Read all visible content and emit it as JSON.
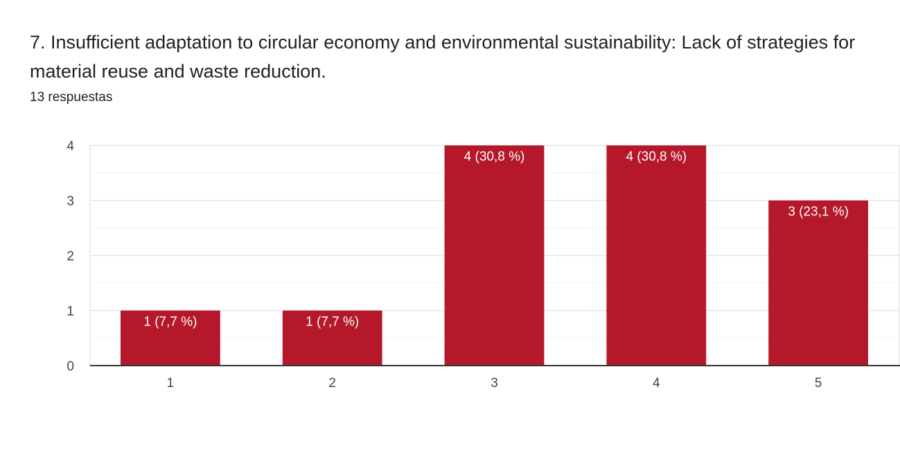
{
  "header": {
    "title": "7. Insufficient adaptation to circular economy and environmental sustainability: Lack of strategies for material reuse and waste reduction.",
    "responses": "13 respuestas"
  },
  "chart_data": {
    "type": "bar",
    "categories": [
      "1",
      "2",
      "3",
      "4",
      "5"
    ],
    "values": [
      1,
      1,
      4,
      4,
      3
    ],
    "data_labels": [
      "1 (7,7 %)",
      "1 (7,7 %)",
      "4 (30,8 %)",
      "4 (30,8 %)",
      "3 (23,1 %)"
    ],
    "ylim": [
      0,
      4
    ],
    "yticks": [
      "0",
      "1",
      "2",
      "3",
      "4"
    ],
    "grid": true,
    "bar_color": "#b5182b",
    "gridline_color": "#e6e6e6",
    "axis_color": "#333333"
  }
}
